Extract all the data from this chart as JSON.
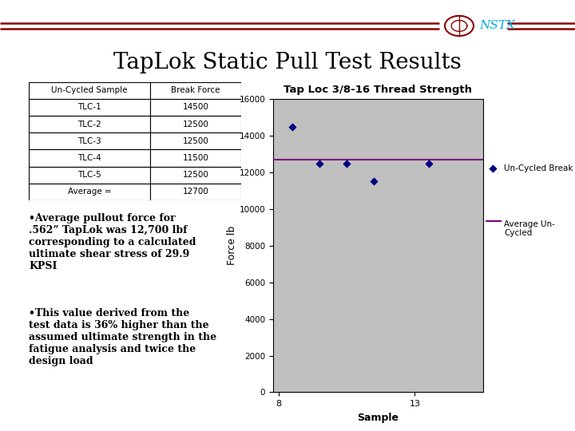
{
  "title": "TapLok Static Pull Test Results",
  "chart_title": "Tap Loc 3/8-16 Thread Strength",
  "background_color": "#ffffff",
  "chart_bg_color": "#c0c0c0",
  "table_headers": [
    "Un-Cycled Sample",
    "Break Force"
  ],
  "table_rows": [
    [
      "TLC-1",
      "14500"
    ],
    [
      "TLC-2",
      "12500"
    ],
    [
      "TLC-3",
      "12500"
    ],
    [
      "TLC-4",
      "11500"
    ],
    [
      "TLC-5",
      "12500"
    ],
    [
      "Average =",
      "12700"
    ]
  ],
  "scatter_x": [
    8.5,
    9.5,
    10.5,
    11.5,
    13.5
  ],
  "scatter_y": [
    14500,
    12500,
    12500,
    11500,
    12500
  ],
  "avg_y": 12700,
  "x_ticks": [
    8,
    13
  ],
  "ylim": [
    0,
    16000
  ],
  "xlim": [
    7.8,
    15.5
  ],
  "xlabel": "Sample",
  "ylabel": "Force lb",
  "scatter_color": "#000080",
  "avg_line_color": "#800080",
  "legend_scatter": "Un-Cycled Break",
  "legend_line": "Average Un-\nCycled",
  "bullet_text_1": "•Average pullout force for\n.562” TapLok was 12,700 lbf\ncorresponding to a calculated\nultimate shear stress of 29.9\nKPSI",
  "bullet_text_2": "•This value derived from the\ntest data is 36% higher than the\nassumed ultimate strength in the\nfatigue analysis and twice the\ndesign load",
  "header_line_color": "#8b0000",
  "nstx_color": "#00aadd",
  "title_fontsize": 20,
  "table_fontsize": 8
}
